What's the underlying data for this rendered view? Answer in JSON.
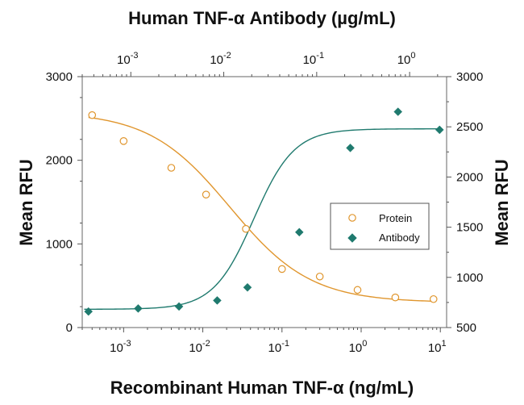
{
  "chart_data": {
    "type": "scatter",
    "title": "Human TNF-α Antibody (µg/mL)",
    "xlabel": "Recombinant Human TNF-α (ng/mL)",
    "ylabel_left": "Mean RFU",
    "ylabel_right": "Mean RFU",
    "x_scale": "log",
    "xlim": [
      0.0003,
      12
    ],
    "top_x_scale": "log",
    "top_xlim": [
      0.0003,
      2.5
    ],
    "ylim_left": [
      0,
      3000
    ],
    "ylim_right": [
      500,
      3000
    ],
    "bottom_ticks": [
      {
        "value": 0.001,
        "base": "10",
        "exp": "-3"
      },
      {
        "value": 0.01,
        "base": "10",
        "exp": "-2"
      },
      {
        "value": 0.1,
        "base": "10",
        "exp": "-1"
      },
      {
        "value": 1,
        "base": "10",
        "exp": "0"
      },
      {
        "value": 10,
        "base": "10",
        "exp": "1"
      }
    ],
    "top_ticks": [
      {
        "value": 0.001,
        "base": "10",
        "exp": "-3"
      },
      {
        "value": 0.01,
        "base": "10",
        "exp": "-2"
      },
      {
        "value": 0.1,
        "base": "10",
        "exp": "-1"
      },
      {
        "value": 1,
        "base": "10",
        "exp": "0"
      }
    ],
    "left_ticks": [
      0,
      1000,
      2000,
      3000
    ],
    "right_ticks": [
      500,
      1000,
      1500,
      2000,
      2500,
      3000
    ],
    "grid": false,
    "legend_position": "right",
    "series": [
      {
        "name": "Protein",
        "axis": "bottom-left",
        "marker": "open-circle",
        "color": "#e0962e",
        "x": [
          0.0004,
          0.001,
          0.004,
          0.011,
          0.035,
          0.1,
          0.3,
          0.9,
          2.7,
          8.2
        ],
        "y": [
          2540,
          2230,
          1910,
          1590,
          1180,
          700,
          610,
          450,
          360,
          340
        ],
        "fit": {
          "model": "4PL",
          "top": 2580,
          "bottom": 300,
          "ec50": 0.022,
          "hill": -0.85
        }
      },
      {
        "name": "Antibody",
        "axis": "top-right",
        "marker": "filled-diamond",
        "color": "#1f7a6e",
        "x": [
          0.00035,
          0.0012,
          0.0033,
          0.0085,
          0.018,
          0.065,
          0.23,
          0.75,
          2.1
        ],
        "y": [
          660,
          690,
          710,
          770,
          900,
          1450,
          2290,
          2650,
          2470
        ],
        "fit": {
          "model": "4PL",
          "top": 2480,
          "bottom": 682,
          "ec50": 0.021,
          "hill": 2.0
        }
      }
    ]
  }
}
